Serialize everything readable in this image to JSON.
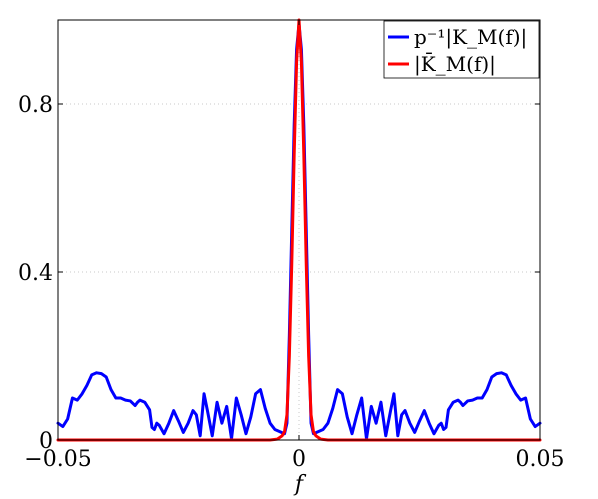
{
  "chart_data": {
    "type": "line",
    "title": "",
    "xlabel": "f",
    "ylabel": "",
    "xlim": [
      -0.05,
      0.05
    ],
    "ylim": [
      0,
      1
    ],
    "xticks": [
      -0.05,
      0,
      0.05
    ],
    "xtick_labels": [
      "−0.05",
      "0",
      "0.05"
    ],
    "yticks": [
      0,
      0.4,
      0.8
    ],
    "ytick_labels": [
      "0",
      "0.4",
      "0.8"
    ],
    "grid": "dotted",
    "legend_position": "top-right",
    "series": [
      {
        "name": "p⁻¹|K_M(f)|",
        "color": "#0000ff",
        "points": [
          [
            -0.05,
            0.04
          ],
          [
            -0.049,
            0.032
          ],
          [
            -0.048,
            0.05
          ],
          [
            -0.047,
            0.1
          ],
          [
            -0.046,
            0.095
          ],
          [
            -0.045,
            0.11
          ],
          [
            -0.044,
            0.13
          ],
          [
            -0.043,
            0.155
          ],
          [
            -0.042,
            0.16
          ],
          [
            -0.041,
            0.158
          ],
          [
            -0.04,
            0.15
          ],
          [
            -0.039,
            0.12
          ],
          [
            -0.038,
            0.1
          ],
          [
            -0.037,
            0.1
          ],
          [
            -0.036,
            0.095
          ],
          [
            -0.035,
            0.093
          ],
          [
            -0.034,
            0.082
          ],
          [
            -0.0335,
            0.09
          ],
          [
            -0.033,
            0.095
          ],
          [
            -0.032,
            0.09
          ],
          [
            -0.031,
            0.072
          ],
          [
            -0.0305,
            0.03
          ],
          [
            -0.03,
            0.025
          ],
          [
            -0.0295,
            0.04
          ],
          [
            -0.029,
            0.035
          ],
          [
            -0.028,
            0.015
          ],
          [
            -0.027,
            0.04
          ],
          [
            -0.026,
            0.07
          ],
          [
            -0.025,
            0.045
          ],
          [
            -0.024,
            0.018
          ],
          [
            -0.023,
            0.04
          ],
          [
            -0.022,
            0.07
          ],
          [
            -0.0213,
            0.06
          ],
          [
            -0.0205,
            0.01
          ],
          [
            -0.0197,
            0.11
          ],
          [
            -0.019,
            0.07
          ],
          [
            -0.018,
            0.01
          ],
          [
            -0.017,
            0.09
          ],
          [
            -0.016,
            0.04
          ],
          [
            -0.015,
            0.08
          ],
          [
            -0.014,
            0.003
          ],
          [
            -0.013,
            0.1
          ],
          [
            -0.012,
            0.06
          ],
          [
            -0.011,
            0.015
          ],
          [
            -0.01,
            0.055
          ],
          [
            -0.009,
            0.11
          ],
          [
            -0.008,
            0.12
          ],
          [
            -0.007,
            0.075
          ],
          [
            -0.006,
            0.04
          ],
          [
            -0.005,
            0.025
          ],
          [
            -0.004,
            0.02
          ],
          [
            -0.003,
            0.015
          ],
          [
            -0.0025,
            0.04
          ],
          [
            -0.002,
            0.25
          ],
          [
            -0.0015,
            0.5
          ],
          [
            -0.001,
            0.75
          ],
          [
            -0.0005,
            0.93
          ],
          [
            0,
            0.99
          ],
          [
            0.0005,
            0.93
          ],
          [
            0.001,
            0.75
          ],
          [
            0.0015,
            0.5
          ],
          [
            0.002,
            0.25
          ],
          [
            0.0025,
            0.04
          ],
          [
            0.003,
            0.015
          ],
          [
            0.004,
            0.02
          ],
          [
            0.005,
            0.025
          ],
          [
            0.006,
            0.04
          ],
          [
            0.007,
            0.075
          ],
          [
            0.008,
            0.12
          ],
          [
            0.009,
            0.11
          ],
          [
            0.01,
            0.055
          ],
          [
            0.011,
            0.015
          ],
          [
            0.012,
            0.06
          ],
          [
            0.013,
            0.1
          ],
          [
            0.014,
            0.003
          ],
          [
            0.015,
            0.08
          ],
          [
            0.016,
            0.04
          ],
          [
            0.017,
            0.09
          ],
          [
            0.018,
            0.01
          ],
          [
            0.019,
            0.07
          ],
          [
            0.0197,
            0.11
          ],
          [
            0.0205,
            0.01
          ],
          [
            0.0213,
            0.06
          ],
          [
            0.022,
            0.07
          ],
          [
            0.023,
            0.04
          ],
          [
            0.024,
            0.018
          ],
          [
            0.025,
            0.045
          ],
          [
            0.026,
            0.07
          ],
          [
            0.027,
            0.04
          ],
          [
            0.028,
            0.015
          ],
          [
            0.029,
            0.035
          ],
          [
            0.0295,
            0.04
          ],
          [
            0.03,
            0.025
          ],
          [
            0.0305,
            0.03
          ],
          [
            0.031,
            0.072
          ],
          [
            0.032,
            0.09
          ],
          [
            0.033,
            0.095
          ],
          [
            0.0335,
            0.09
          ],
          [
            0.034,
            0.082
          ],
          [
            0.035,
            0.093
          ],
          [
            0.036,
            0.095
          ],
          [
            0.037,
            0.1
          ],
          [
            0.038,
            0.1
          ],
          [
            0.039,
            0.12
          ],
          [
            0.04,
            0.15
          ],
          [
            0.041,
            0.158
          ],
          [
            0.042,
            0.16
          ],
          [
            0.043,
            0.155
          ],
          [
            0.044,
            0.13
          ],
          [
            0.045,
            0.11
          ],
          [
            0.046,
            0.095
          ],
          [
            0.047,
            0.1
          ],
          [
            0.048,
            0.05
          ],
          [
            0.049,
            0.032
          ],
          [
            0.05,
            0.04
          ]
        ]
      },
      {
        "name": "|K̄_M(f)|",
        "color": "#ff0000",
        "points": [
          [
            -0.05,
            0
          ],
          [
            -0.006,
            0
          ],
          [
            -0.0045,
            0.002
          ],
          [
            -0.0035,
            0.01
          ],
          [
            -0.003,
            0.02
          ],
          [
            -0.0025,
            0.06
          ],
          [
            -0.002,
            0.2
          ],
          [
            -0.0015,
            0.42
          ],
          [
            -0.001,
            0.68
          ],
          [
            -0.0005,
            0.9
          ],
          [
            0,
            1.0
          ],
          [
            0.0005,
            0.9
          ],
          [
            0.001,
            0.68
          ],
          [
            0.0015,
            0.42
          ],
          [
            0.002,
            0.2
          ],
          [
            0.0025,
            0.06
          ],
          [
            0.003,
            0.02
          ],
          [
            0.0035,
            0.01
          ],
          [
            0.0045,
            0.002
          ],
          [
            0.006,
            0
          ],
          [
            0.05,
            0
          ]
        ]
      }
    ]
  }
}
